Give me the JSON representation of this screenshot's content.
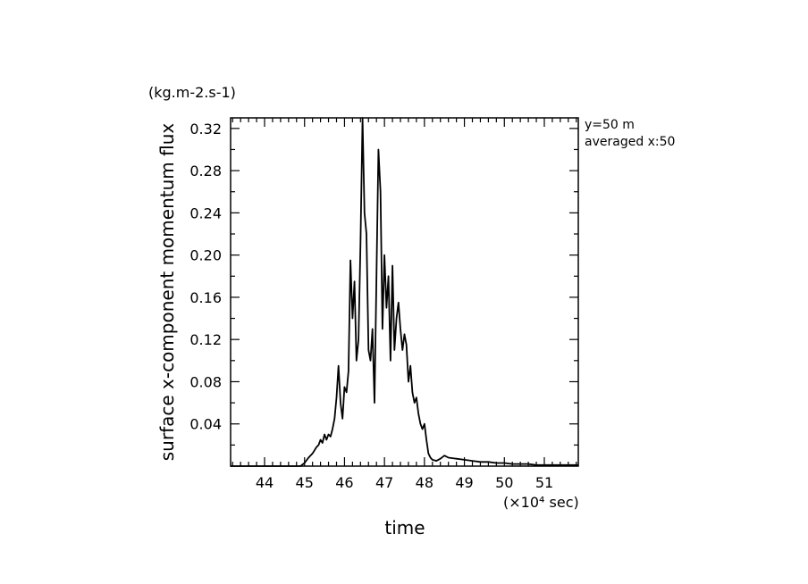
{
  "chart_data": {
    "type": "line",
    "title": "",
    "xlabel": "time",
    "ylabel": "surface x-component momentum flux",
    "x_unit_label": "(×10⁴ sec)",
    "y_unit_label": "(kg.m-2.s-1)",
    "annotations": [
      "y=50 m",
      "averaged  x:50"
    ],
    "xlim": [
      43.15,
      51.85
    ],
    "ylim": [
      0.0,
      0.33
    ],
    "grid": false,
    "x_ticks": [
      44,
      45,
      46,
      47,
      48,
      49,
      50,
      51
    ],
    "x_tick_labels": [
      "44",
      "45",
      "46",
      "47",
      "48",
      "49",
      "50",
      "51"
    ],
    "y_ticks": [
      0.04,
      0.08,
      0.12,
      0.16,
      0.2,
      0.24,
      0.28,
      0.32
    ],
    "y_tick_labels": [
      "0.04",
      "0.08",
      "0.12",
      "0.16",
      "0.20",
      "0.24",
      "0.28",
      "0.32"
    ],
    "line_color": "#000000",
    "series": [
      {
        "x": [
          43.15,
          44.0,
          44.9,
          45.0,
          45.1,
          45.2,
          45.3,
          45.35,
          45.4,
          45.45,
          45.5,
          45.55,
          45.6,
          45.65,
          45.7,
          45.75,
          45.8,
          45.85,
          45.9,
          45.95,
          46.0,
          46.05,
          46.1,
          46.15,
          46.2,
          46.25,
          46.3,
          46.35,
          46.4,
          46.45,
          46.5,
          46.55,
          46.6,
          46.65,
          46.7,
          46.75,
          46.8,
          46.85,
          46.9,
          46.95,
          47.0,
          47.05,
          47.1,
          47.15,
          47.2,
          47.25,
          47.3,
          47.35,
          47.4,
          47.45,
          47.5,
          47.55,
          47.6,
          47.65,
          47.7,
          47.75,
          47.8,
          47.85,
          47.9,
          47.95,
          48.0,
          48.05,
          48.1,
          48.15,
          48.2,
          48.3,
          48.4,
          48.5,
          48.6,
          48.8,
          49.0,
          49.2,
          49.4,
          49.6,
          49.8,
          50.0,
          50.2,
          50.4,
          50.6,
          50.8,
          51.0,
          51.2,
          51.4,
          51.6,
          51.85
        ],
        "y": [
          0.0,
          0.0,
          0.0,
          0.003,
          0.008,
          0.012,
          0.018,
          0.02,
          0.025,
          0.022,
          0.03,
          0.025,
          0.03,
          0.028,
          0.035,
          0.045,
          0.065,
          0.095,
          0.06,
          0.045,
          0.075,
          0.07,
          0.09,
          0.195,
          0.14,
          0.175,
          0.1,
          0.12,
          0.21,
          0.33,
          0.24,
          0.22,
          0.11,
          0.1,
          0.13,
          0.06,
          0.18,
          0.3,
          0.26,
          0.13,
          0.2,
          0.15,
          0.18,
          0.1,
          0.19,
          0.11,
          0.14,
          0.155,
          0.13,
          0.11,
          0.125,
          0.115,
          0.08,
          0.095,
          0.07,
          0.06,
          0.065,
          0.05,
          0.04,
          0.035,
          0.04,
          0.025,
          0.012,
          0.008,
          0.006,
          0.005,
          0.007,
          0.01,
          0.008,
          0.007,
          0.006,
          0.005,
          0.004,
          0.004,
          0.003,
          0.003,
          0.002,
          0.002,
          0.002,
          0.001,
          0.001,
          0.001,
          0.001,
          0.001,
          0.001
        ]
      }
    ]
  }
}
